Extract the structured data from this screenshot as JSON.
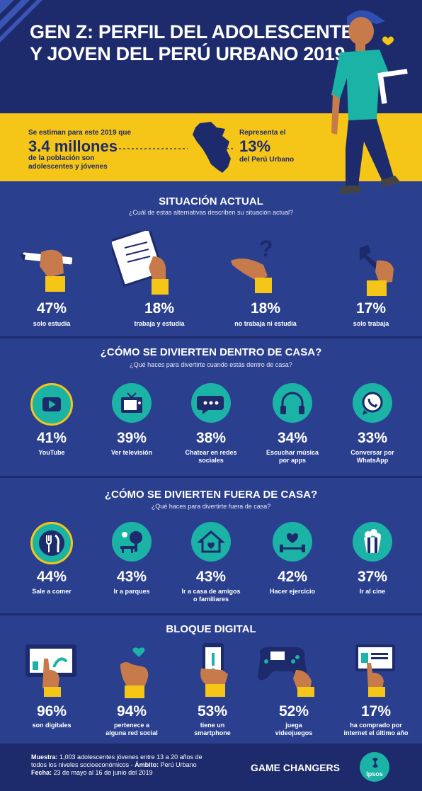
{
  "header": {
    "title_line1": "GEN Z: PERFIL DEL ADOLESCENTE",
    "title_line2": "Y JOVEN DEL PERÚ URBANO 2019"
  },
  "band": {
    "left_intro": "Se estiman para este 2019 que",
    "left_big": "3.4 millones",
    "left_rest_1": "de la población son",
    "left_rest_2": "adolescentes y jóvenes",
    "right_intro": "Representa el",
    "right_big": "13%",
    "right_rest": "del Perú Urbano"
  },
  "situacion": {
    "title": "SITUACIÓN ACTUAL",
    "subtitle": "¿Cuál de estas alternativas describen su situación actual?",
    "items": [
      {
        "pct": "47%",
        "label": "solo estudia",
        "icon": "pencil-hand-icon"
      },
      {
        "pct": "18%",
        "label": "trabaja y estudia",
        "icon": "clipboard-hand-icon"
      },
      {
        "pct": "18%",
        "label": "no trabaja ni estudia",
        "icon": "question-hand-icon"
      },
      {
        "pct": "17%",
        "label": "solo trabaja",
        "icon": "wrench-hand-icon"
      }
    ]
  },
  "dentro": {
    "title": "¿CÓMO SE DIVIERTEN DENTRO DE CASA?",
    "subtitle": "¿Qué haces para divertirte cuando estás dentro de casa?",
    "items": [
      {
        "pct": "41%",
        "label1": "YouTube",
        "label2": "",
        "icon": "youtube-icon"
      },
      {
        "pct": "39%",
        "label1": "Ver televisión",
        "label2": "",
        "icon": "tv-icon"
      },
      {
        "pct": "38%",
        "label1": "Chatear en redes",
        "label2": "sociales",
        "icon": "chat-icon"
      },
      {
        "pct": "34%",
        "label1": "Escuchar música",
        "label2": "por apps",
        "icon": "headphones-icon"
      },
      {
        "pct": "33%",
        "label1": "Conversar por",
        "label2": "WhatsApp",
        "icon": "whatsapp-icon"
      }
    ]
  },
  "fuera": {
    "title": "¿CÓMO SE DIVIERTEN FUERA DE CASA?",
    "subtitle": "¿Qué haces para divertirte fuera de casa?",
    "items": [
      {
        "pct": "44%",
        "label1": "Sale a comer",
        "label2": "",
        "icon": "cutlery-icon"
      },
      {
        "pct": "43%",
        "label1": "Ir a parques",
        "label2": "",
        "icon": "park-icon"
      },
      {
        "pct": "43%",
        "label1": "Ir a casa de amigos",
        "label2": "o familiares",
        "icon": "house-heart-icon"
      },
      {
        "pct": "42%",
        "label1": "Hacer ejercicio",
        "label2": "",
        "icon": "dumbbell-heart-icon"
      },
      {
        "pct": "37%",
        "label1": "Ir al cine",
        "label2": "",
        "icon": "popcorn-icon"
      }
    ]
  },
  "digital": {
    "title": "BLOQUE DIGITAL",
    "items": [
      {
        "pct": "96%",
        "label1": "son digitales",
        "label2": "",
        "icon": "tablet-hand-icon"
      },
      {
        "pct": "94%",
        "label1": "pertenece a",
        "label2": "alguna red social",
        "icon": "like-hand-icon"
      },
      {
        "pct": "53%",
        "label1": "tiene un",
        "label2": "smartphone",
        "icon": "smartphone-hand-icon"
      },
      {
        "pct": "52%",
        "label1": "juega",
        "label2": "videojuegos",
        "icon": "gamepad-hand-icon"
      },
      {
        "pct": "17%",
        "label1": "ha comprado por",
        "label2": "internet el último año",
        "icon": "shopping-hand-icon"
      }
    ]
  },
  "footer": {
    "muestra_label": "Muestra:",
    "muestra_text": " 1,003 adolescentes jóvenes entre 13 a 20 años de",
    "muestra_text2": "todos los niveles socioeconómicos  - ",
    "ambito_label": "Ámbito:",
    "ambito_text": " Perú Urbano",
    "fecha_label": "Fecha:",
    "fecha_text": " 23 de mayo al 16 de junio del 2019",
    "brand_text": "GAME CHANGERS",
    "logo_text": "Ipsos"
  },
  "colors": {
    "navy": "#1d2a6b",
    "blue": "#2b3f8f",
    "yellow": "#f5c518",
    "teal": "#1ab3a5",
    "skin": "#c77b4a"
  }
}
